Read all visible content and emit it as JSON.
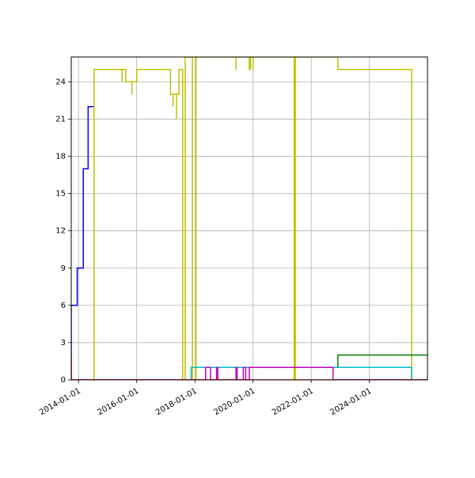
{
  "chart_data": {
    "type": "line",
    "title": "",
    "xlabel": "",
    "ylabel": "",
    "xlim": [
      "2013-10-01",
      "2025-12-31"
    ],
    "ylim": [
      0,
      26
    ],
    "grid": true,
    "legend": "none",
    "x_ticks": [
      "2014-01-01",
      "2016-01-01",
      "2018-01-01",
      "2020-01-01",
      "2022-01-01",
      "2024-01-01"
    ],
    "y_ticks": [
      0,
      3,
      6,
      9,
      12,
      15,
      18,
      21,
      24
    ],
    "series": [
      {
        "color": "#0000ff",
        "points": [
          [
            "2013-10-01",
            0
          ],
          [
            "2013-10-01",
            6
          ],
          [
            "2013-12-15",
            6
          ],
          [
            "2013-12-15",
            9
          ],
          [
            "2014-03-01",
            9
          ],
          [
            "2014-03-01",
            17
          ],
          [
            "2014-05-01",
            17
          ],
          [
            "2014-05-01",
            22
          ],
          [
            "2014-07-15",
            22
          ]
        ]
      },
      {
        "color": "#bfbf00",
        "points": [
          [
            "2014-07-15",
            0
          ],
          [
            "2014-07-15",
            25
          ],
          [
            "2015-07-01",
            25
          ],
          [
            "2015-07-01",
            24
          ],
          [
            "2015-07-01",
            25
          ],
          [
            "2015-08-15",
            25
          ],
          [
            "2015-08-15",
            24
          ],
          [
            "2015-11-01",
            24
          ],
          [
            "2015-11-01",
            23
          ],
          [
            "2015-11-01",
            24
          ],
          [
            "2016-01-01",
            24
          ],
          [
            "2016-01-01",
            25
          ],
          [
            "2017-03-01",
            25
          ],
          [
            "2017-03-01",
            23
          ],
          [
            "2017-04-01",
            23
          ],
          [
            "2017-04-01",
            22
          ],
          [
            "2017-04-01",
            23
          ],
          [
            "2017-05-15",
            23
          ],
          [
            "2017-05-15",
            21
          ],
          [
            "2017-05-15",
            23
          ],
          [
            "2017-06-15",
            23
          ],
          [
            "2017-06-15",
            25
          ],
          [
            "2017-08-01",
            25
          ],
          [
            "2017-08-01",
            0
          ],
          [
            "2017-09-01",
            0
          ],
          [
            "2017-09-01",
            26
          ],
          [
            "2017-12-01",
            26
          ],
          [
            "2017-12-01",
            0
          ],
          [
            "2018-01-15",
            0
          ],
          [
            "2018-01-15",
            26
          ],
          [
            "2019-06-01",
            26
          ],
          [
            "2019-06-01",
            25
          ],
          [
            "2019-06-01",
            26
          ],
          [
            "2019-11-15",
            26
          ],
          [
            "2019-11-15",
            25
          ],
          [
            "2019-12-01",
            25
          ],
          [
            "2019-12-01",
            26
          ],
          [
            "2020-01-01",
            26
          ],
          [
            "2020-01-01",
            25
          ],
          [
            "2020-01-01",
            26
          ],
          [
            "2021-06-01",
            26
          ],
          [
            "2021-06-01",
            0
          ],
          [
            "2021-06-15",
            0
          ],
          [
            "2021-06-15",
            26
          ],
          [
            "2022-12-01",
            26
          ],
          [
            "2022-12-01",
            25
          ],
          [
            "2025-06-15",
            25
          ],
          [
            "2025-06-15",
            0
          ]
        ]
      },
      {
        "color": "#00bfbf",
        "points": [
          [
            "2017-11-15",
            0
          ],
          [
            "2017-11-15",
            1
          ],
          [
            "2025-06-15",
            1
          ],
          [
            "2025-06-15",
            0
          ]
        ]
      },
      {
        "color": "#bf00bf",
        "points": [
          [
            "2013-10-01",
            0
          ],
          [
            "2018-05-15",
            0
          ],
          [
            "2018-05-15",
            1
          ],
          [
            "2018-07-15",
            1
          ],
          [
            "2018-07-15",
            0
          ],
          [
            "2018-10-01",
            0
          ],
          [
            "2018-10-01",
            1
          ],
          [
            "2018-10-15",
            1
          ],
          [
            "2018-10-15",
            0
          ],
          [
            "2019-06-01",
            0
          ],
          [
            "2019-06-01",
            1
          ],
          [
            "2019-06-15",
            1
          ],
          [
            "2019-06-15",
            0
          ],
          [
            "2019-09-01",
            0
          ],
          [
            "2019-09-01",
            1
          ],
          [
            "2019-10-01",
            1
          ],
          [
            "2019-10-01",
            0
          ],
          [
            "2019-11-15",
            0
          ],
          [
            "2019-11-15",
            1
          ],
          [
            "2022-10-01",
            1
          ],
          [
            "2022-10-01",
            0
          ],
          [
            "2025-12-31",
            0
          ]
        ]
      },
      {
        "color": "#008000",
        "points": [
          [
            "2022-12-01",
            1
          ],
          [
            "2022-12-01",
            2
          ],
          [
            "2025-12-31",
            2
          ]
        ]
      },
      {
        "color": "#ff0000",
        "points": [
          [
            "2013-10-01",
            0
          ],
          [
            "2013-10-01",
            2
          ],
          [
            "2013-10-01",
            0
          ],
          [
            "2025-12-31",
            0
          ]
        ]
      }
    ]
  }
}
